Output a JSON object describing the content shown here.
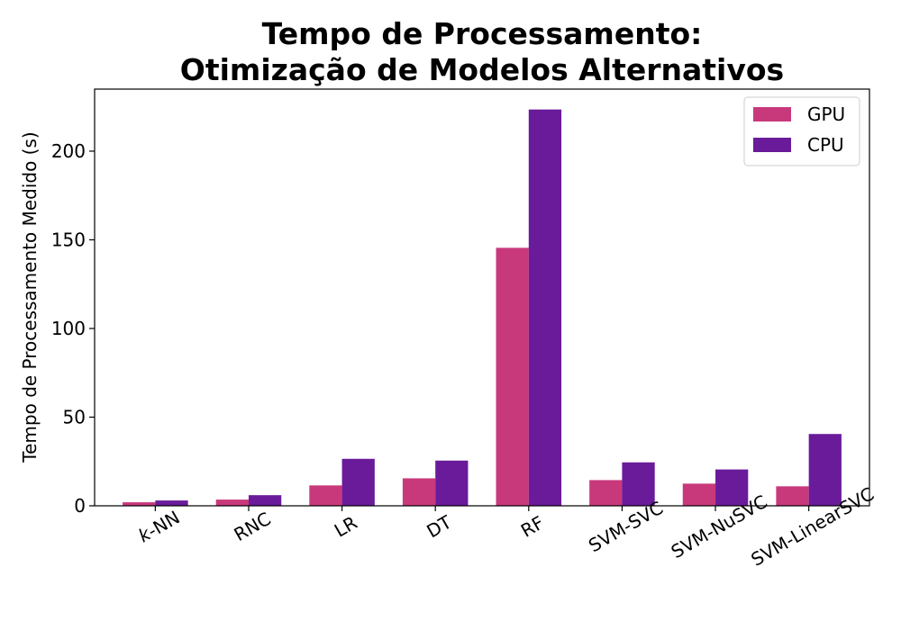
{
  "chart_data": {
    "type": "bar",
    "title": [
      "Tempo de Processamento:",
      "Otimização de Modelos Alternativos"
    ],
    "xlabel": "",
    "ylabel": "Tempo de Processamento Medido (s)",
    "categories": [
      "k-NN",
      "RNC",
      "LR",
      "DT",
      "RF",
      "SVM-SVC",
      "SVM-NuSVC",
      "SVM-LinearSVC"
    ],
    "series": [
      {
        "name": "GPU",
        "color": "#c8397c",
        "values": [
          2,
          3.5,
          11.5,
          15.5,
          145.5,
          14.5,
          12.5,
          11
        ]
      },
      {
        "name": "CPU",
        "color": "#6a1b9a",
        "values": [
          3,
          6,
          26.5,
          25.5,
          223.5,
          24.5,
          20.5,
          40.5
        ]
      }
    ],
    "ylim": [
      0,
      235
    ],
    "yticks": [
      0,
      50,
      100,
      150,
      200
    ],
    "grid": false,
    "legend_position": "top-right",
    "tick_label_rotation": 30
  }
}
